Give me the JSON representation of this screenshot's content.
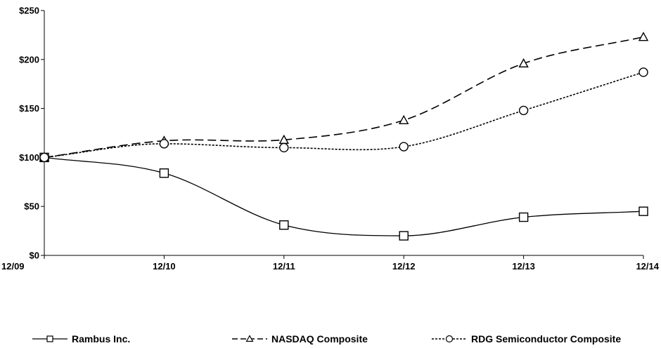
{
  "chart_data": {
    "type": "line",
    "title": "",
    "xlabel": "",
    "ylabel": "",
    "categories": [
      "12/09",
      "12/10",
      "12/11",
      "12/12",
      "12/13",
      "12/14"
    ],
    "y_ticks": [
      "$0",
      "$50",
      "$100",
      "$150",
      "$200",
      "$250"
    ],
    "ylim": [
      0,
      250
    ],
    "grid": false,
    "legend_position": "bottom",
    "series": [
      {
        "name": "Rambus Inc.",
        "values": [
          100,
          84,
          31,
          20,
          39,
          45
        ],
        "marker": "square",
        "line_style": "solid",
        "color": "#000000"
      },
      {
        "name": "NASDAQ Composite",
        "values": [
          100,
          117,
          118,
          138,
          196,
          223
        ],
        "marker": "triangle",
        "line_style": "dashed",
        "color": "#000000"
      },
      {
        "name": "RDG Semiconductor Composite",
        "values": [
          100,
          114,
          110,
          111,
          148,
          187
        ],
        "marker": "circle",
        "line_style": "dotted",
        "color": "#000000"
      }
    ]
  }
}
